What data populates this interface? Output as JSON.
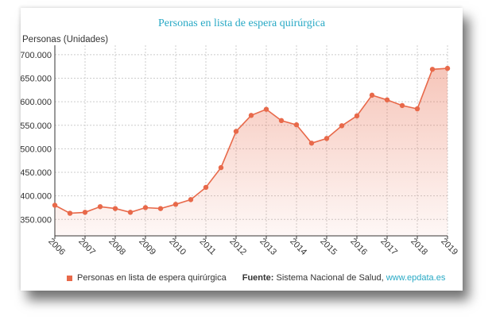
{
  "chart_data": {
    "type": "area",
    "title": "Personas en lista de espera quirúrgica",
    "ylabel": "Personas (Unidades)",
    "xlabel": "",
    "x_ticks": [
      "2006",
      "2007",
      "2008",
      "2009",
      "2010",
      "2011",
      "2012",
      "2013",
      "2014",
      "2015",
      "2016",
      "2017",
      "2018",
      "2019"
    ],
    "y_ticks": [
      "350.000",
      "400.000",
      "450.000",
      "500.000",
      "550.000",
      "600.000",
      "650.000",
      "700.000"
    ],
    "ylim": [
      315000,
      710000
    ],
    "xlim": [
      2006,
      2019
    ],
    "grid": true,
    "series": [
      {
        "name": "Personas en lista de espera quirúrgica",
        "color": "#e8694a",
        "x": [
          2006,
          2006.5,
          2007,
          2007.5,
          2008,
          2008.5,
          2009,
          2009.5,
          2010,
          2010.5,
          2011,
          2011.5,
          2012,
          2012.5,
          2013,
          2013.5,
          2014,
          2014.5,
          2015,
          2015.5,
          2016,
          2016.5,
          2017,
          2017.5,
          2018,
          2018.5,
          2019
        ],
        "values": [
          380000,
          363000,
          365000,
          377000,
          373000,
          365000,
          375000,
          373000,
          382000,
          392000,
          418000,
          460000,
          537000,
          571000,
          584000,
          560000,
          551000,
          512000,
          522000,
          549000,
          570000,
          614000,
          604000,
          592000,
          585000,
          669000,
          671000
        ]
      }
    ],
    "legend_position": "bottom",
    "source_label": "Fuente:",
    "source_text": "Sistema Nacional de Salud,",
    "source_link": "www.epdata.es"
  }
}
